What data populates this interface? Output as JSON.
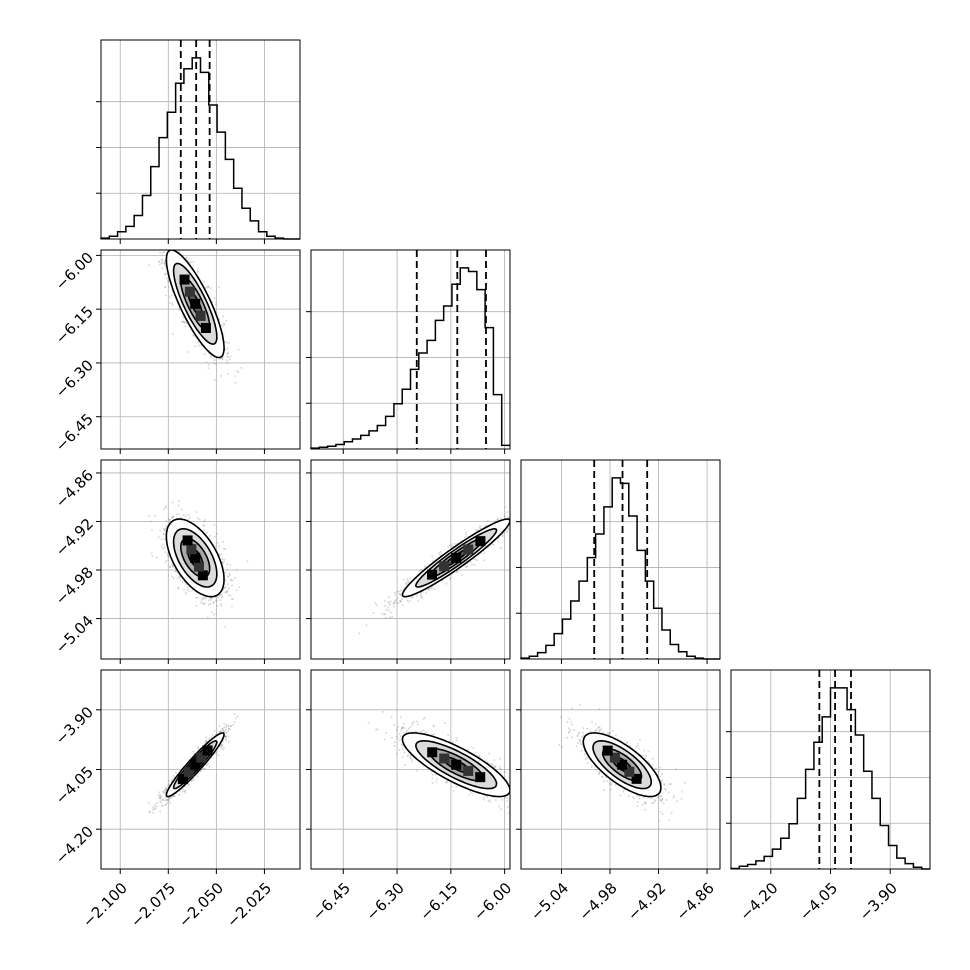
{
  "chart_data": {
    "type": "corner",
    "parameters": [
      {
        "range": [
          -2.11,
          -2.0065
        ],
        "ticks": [
          -2.1,
          -2.075,
          -2.05,
          -2.025
        ],
        "tick_labels": [
          "−2.100",
          "−2.075",
          "−2.050",
          "−2.025"
        ]
      },
      {
        "range": [
          -6.54,
          -5.985
        ],
        "ticks": [
          -6.45,
          -6.3,
          -6.15,
          -6.0
        ],
        "tick_labels": [
          "−6.45",
          "−6.30",
          "−6.15",
          "−6.00"
        ]
      },
      {
        "range": [
          -5.09,
          -4.844
        ],
        "ticks": [
          -5.04,
          -4.98,
          -4.92,
          -4.86
        ],
        "tick_labels": [
          "−5.04",
          "−4.98",
          "−4.92",
          "−4.86"
        ]
      },
      {
        "range": [
          -4.3,
          -3.8
        ],
        "ticks": [
          -4.2,
          -4.05,
          -3.9
        ],
        "tick_labels": [
          "−4.20",
          "−4.05",
          "−3.90"
        ]
      }
    ],
    "quantiles": [
      [
        -2.0685,
        -2.0605,
        -2.0535
      ],
      [
        -6.245,
        -6.132,
        -6.052
      ],
      [
        -4.9995,
        -4.9645,
        -4.934
      ],
      [
        -4.078,
        -4.0385,
        -3.9985
      ]
    ],
    "histograms": [
      [
        0.5,
        1.5,
        4,
        7,
        13,
        24,
        40,
        56,
        70,
        86,
        94,
        100,
        92,
        74,
        59,
        44,
        28,
        17,
        10,
        4,
        1.5,
        0.5,
        0,
        0
      ],
      [
        0.5,
        1,
        1.5,
        2.5,
        4,
        5.5,
        7.5,
        10,
        13,
        18,
        25,
        33,
        44,
        53,
        60,
        71,
        79,
        91,
        100,
        98,
        88,
        67,
        30,
        2
      ],
      [
        0.5,
        1.5,
        3.5,
        7.5,
        14,
        22,
        32,
        43,
        56,
        69,
        84,
        100,
        97,
        79,
        60,
        43,
        28,
        16,
        8,
        4,
        1.5,
        0.5,
        0,
        0
      ],
      [
        0.3,
        1.5,
        2.5,
        4.5,
        7,
        11,
        17,
        25,
        39,
        55,
        70,
        84,
        100,
        100,
        88,
        74,
        54,
        39,
        24,
        13,
        6,
        3,
        1,
        0
      ]
    ],
    "correlations": [
      {
        "x": 0,
        "y": 1,
        "mx": -2.061,
        "my": -6.135,
        "sx": 0.0075,
        "sy": 0.075,
        "rho": -0.82
      },
      {
        "x": 0,
        "y": 2,
        "mx": -2.061,
        "my": -4.965,
        "sx": 0.0075,
        "sy": 0.024,
        "rho": -0.55
      },
      {
        "x": 1,
        "y": 2,
        "mx": -6.135,
        "my": -4.965,
        "sx": 0.075,
        "sy": 0.024,
        "rho": 0.95
      },
      {
        "x": 0,
        "y": 3,
        "mx": -2.061,
        "my": -4.038,
        "sx": 0.0075,
        "sy": 0.04,
        "rho": 0.95
      },
      {
        "x": 1,
        "y": 3,
        "mx": -6.135,
        "my": -4.038,
        "sx": 0.075,
        "sy": 0.04,
        "rho": -0.8
      },
      {
        "x": 2,
        "y": 3,
        "mx": -4.965,
        "my": -4.038,
        "sx": 0.024,
        "sy": 0.04,
        "rho": -0.72
      }
    ],
    "contour_levels_sigma": [
      0.5,
      1.0,
      1.5,
      2.0
    ],
    "grid": true,
    "colors": {
      "scatter": "#888888",
      "line": "#000000",
      "grid": "#b0b0b0"
    }
  }
}
